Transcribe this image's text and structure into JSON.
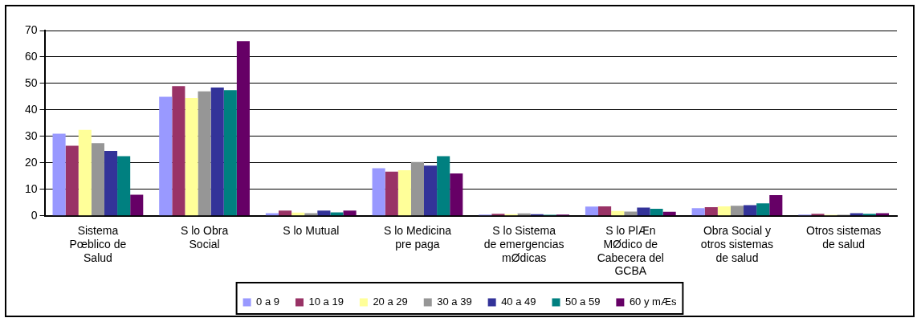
{
  "chart_data": {
    "type": "bar",
    "categories": [
      "Sistema Pœblico de Salud",
      "S lo Obra Social",
      "S lo Mutual",
      "S lo Medicina pre paga",
      "S lo Sistema de emergencias mØdicas",
      "S lo PlÆn MØdico de Cabecera del GCBA",
      "Obra Social y otros sistemas de salud",
      "Otros sistemas de salud"
    ],
    "series": [
      {
        "name": "0 a 9",
        "color": "#9999ff",
        "values": [
          31,
          45,
          1,
          18,
          0.5,
          3.5,
          2.9,
          0.5
        ]
      },
      {
        "name": "10 a 19",
        "color": "#993366",
        "values": [
          26.5,
          49,
          2,
          16.7,
          0.8,
          3.6,
          3.3,
          0.8
        ]
      },
      {
        "name": "20 a 29",
        "color": "#ffff99",
        "values": [
          32.5,
          44.5,
          1.2,
          17.2,
          0.6,
          1.8,
          3.6,
          0.4
        ]
      },
      {
        "name": "30 a 39",
        "color": "#969696",
        "values": [
          27.5,
          47,
          1,
          20.3,
          0.9,
          1.6,
          3.8,
          0.4
        ]
      },
      {
        "name": "40 a 49",
        "color": "#333399",
        "values": [
          24.5,
          48.5,
          2,
          19,
          0.6,
          3.1,
          4,
          1
        ]
      },
      {
        "name": "50 a 59",
        "color": "#008080",
        "values": [
          22.5,
          47.5,
          1.3,
          22.5,
          0.4,
          2.7,
          4.7,
          0.8
        ]
      },
      {
        "name": "60 y mÆs",
        "color": "#660066",
        "values": [
          8,
          66,
          2,
          16,
          0.5,
          1.5,
          7.8,
          1
        ]
      }
    ],
    "ylim": [
      0,
      70
    ],
    "yticks": [
      0,
      10,
      20,
      30,
      40,
      50,
      60,
      70
    ],
    "grid": "y",
    "legend": "bottom"
  }
}
